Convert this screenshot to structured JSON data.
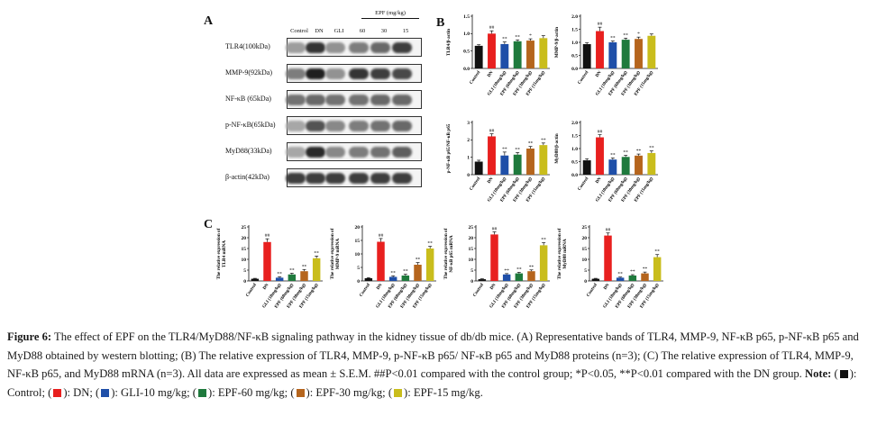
{
  "colors": {
    "Control": "#111111",
    "DN": "#e8201f",
    "GLI": "#1f4fa8",
    "EPF60": "#1f7a3d",
    "EPF30": "#b5651d",
    "EPF15": "#c9bd1c"
  },
  "panel_A": {
    "letter": "A",
    "lanes": [
      "Control",
      "DN",
      "GLI",
      "60",
      "30",
      "15"
    ],
    "epf_header": "EPF (mg/kg)",
    "rows": [
      {
        "label": "TLR4(100kDa)",
        "intensity": [
          0.35,
          0.85,
          0.4,
          0.5,
          0.6,
          0.8
        ]
      },
      {
        "label": "MMP-9(92kDa)",
        "intensity": [
          0.5,
          0.95,
          0.4,
          0.85,
          0.8,
          0.75
        ]
      },
      {
        "label": "NF-κB (65kDa)",
        "intensity": [
          0.55,
          0.6,
          0.55,
          0.55,
          0.6,
          0.6
        ]
      },
      {
        "label": "p-NF-κB(65kDa)",
        "intensity": [
          0.3,
          0.7,
          0.45,
          0.5,
          0.55,
          0.6
        ]
      },
      {
        "label": "MyD88(33kDa)",
        "intensity": [
          0.3,
          0.9,
          0.45,
          0.5,
          0.55,
          0.65
        ]
      },
      {
        "label": "β-actin(42kDa)",
        "intensity": [
          0.8,
          0.8,
          0.8,
          0.8,
          0.8,
          0.8
        ]
      }
    ]
  },
  "panel_B_letter": "B",
  "panel_C_letter": "C",
  "chart_data": [
    {
      "type": "bar",
      "panel": "B",
      "ylabel": "TLR4/β-actin",
      "ylim": [
        0,
        1.5
      ],
      "yticks": [
        0.0,
        0.5,
        1.0,
        1.5
      ],
      "categories": [
        "Control",
        "DN",
        "GLI (10mg/kg)",
        "EPF (60mg/kg)",
        "EPF (30mg/kg)",
        "EPF (15mg/kg)"
      ],
      "values": [
        0.65,
        1.0,
        0.7,
        0.78,
        0.8,
        0.87
      ],
      "errors": [
        0.03,
        0.08,
        0.06,
        0.04,
        0.05,
        0.07
      ],
      "annotations": [
        "",
        "##",
        "**",
        "**",
        "*",
        ""
      ]
    },
    {
      "type": "bar",
      "panel": "B",
      "ylabel": "MMP-9/β-actin",
      "ylim": [
        0,
        2.0
      ],
      "yticks": [
        0.0,
        0.5,
        1.0,
        1.5,
        2.0
      ],
      "categories": [
        "Control",
        "DN",
        "GLI (10mg/kg)",
        "EPF (60mg/kg)",
        "EPF (30mg/kg)",
        "EPF (15mg/kg)"
      ],
      "values": [
        0.93,
        1.43,
        1.0,
        1.1,
        1.13,
        1.25
      ],
      "errors": [
        0.05,
        0.15,
        0.05,
        0.06,
        0.07,
        0.07
      ],
      "annotations": [
        "",
        "##",
        "**",
        "**",
        "*",
        ""
      ]
    },
    {
      "type": "bar",
      "panel": "B",
      "ylabel": "p-NF-κB p65/NF-κB p65",
      "ylim": [
        0,
        3
      ],
      "yticks": [
        0,
        1,
        2,
        3
      ],
      "categories": [
        "Control",
        "DN",
        "GLI (10mg/kg)",
        "EPF (60mg/kg)",
        "EPF (30mg/kg)",
        "EPF (15mg/kg)"
      ],
      "values": [
        0.75,
        2.2,
        1.1,
        1.15,
        1.5,
        1.7
      ],
      "errors": [
        0.08,
        0.15,
        0.2,
        0.12,
        0.12,
        0.12
      ],
      "annotations": [
        "",
        "##",
        "**",
        "**",
        "**",
        "**"
      ]
    },
    {
      "type": "bar",
      "panel": "B",
      "ylabel": "MyD88/β-actin",
      "ylim": [
        0,
        2.0
      ],
      "yticks": [
        0.0,
        0.5,
        1.0,
        1.5,
        2.0
      ],
      "categories": [
        "Control",
        "DN",
        "GLI (10mg/kg)",
        "EPF (60mg/kg)",
        "EPF (30mg/kg)",
        "EPF (15mg/kg)"
      ],
      "values": [
        0.55,
        1.43,
        0.58,
        0.68,
        0.73,
        0.83
      ],
      "errors": [
        0.06,
        0.1,
        0.06,
        0.06,
        0.06,
        0.08
      ],
      "annotations": [
        "",
        "##",
        "**",
        "**",
        "**",
        "**"
      ]
    },
    {
      "type": "bar",
      "panel": "C",
      "ylabel": "The relative expression of TLR4 mRNA",
      "ylim": [
        0,
        25
      ],
      "yticks": [
        0,
        5,
        10,
        15,
        20,
        25
      ],
      "categories": [
        "Control",
        "DN",
        "GLI (10mg/kg)",
        "EPF (60mg/kg)",
        "EPF (30mg/kg)",
        "EPF (15mg/kg)"
      ],
      "values": [
        1.0,
        18.0,
        1.5,
        3.0,
        4.5,
        10.5
      ],
      "errors": [
        0.2,
        1.5,
        0.4,
        0.6,
        0.8,
        1.0
      ],
      "annotations": [
        "",
        "##",
        "**",
        "**",
        "**",
        "**"
      ]
    },
    {
      "type": "bar",
      "panel": "C",
      "ylabel": "The relative expression of MMP-9 mRNA",
      "ylim": [
        0,
        20
      ],
      "yticks": [
        0,
        5,
        10,
        15,
        20
      ],
      "categories": [
        "Control",
        "DN",
        "GLI (10mg/kg)",
        "EPF (60mg/kg)",
        "EPF (30mg/kg)",
        "EPF (15mg/kg)"
      ],
      "values": [
        1.0,
        14.5,
        1.5,
        2.0,
        6.0,
        12.0
      ],
      "errors": [
        0.2,
        1.2,
        0.4,
        0.5,
        0.8,
        0.8
      ],
      "annotations": [
        "",
        "##",
        "**",
        "**",
        "**",
        "**"
      ]
    },
    {
      "type": "bar",
      "panel": "C",
      "ylabel": "The relative expression of NF-κB p65 mRNA",
      "ylim": [
        0,
        25
      ],
      "yticks": [
        0,
        5,
        10,
        15,
        20,
        25
      ],
      "categories": [
        "Control",
        "DN",
        "GLI (10mg/kg)",
        "EPF (60mg/kg)",
        "EPF (30mg/kg)",
        "EPF (15mg/kg)"
      ],
      "values": [
        0.8,
        21.5,
        3.0,
        3.5,
        4.5,
        16.5
      ],
      "errors": [
        0.2,
        1.2,
        0.4,
        0.5,
        0.6,
        1.2
      ],
      "annotations": [
        "",
        "##",
        "**",
        "**",
        "**",
        "**"
      ]
    },
    {
      "type": "bar",
      "panel": "C",
      "ylabel": "The relative expression of MyD88 mRNA",
      "ylim": [
        0,
        25
      ],
      "yticks": [
        0,
        5,
        10,
        15,
        20,
        25
      ],
      "categories": [
        "Control",
        "DN",
        "GLI (10mg/kg)",
        "EPF (60mg/kg)",
        "EPF (30mg/kg)",
        "EPF (15mg/kg)"
      ],
      "values": [
        1.0,
        21.0,
        1.5,
        2.5,
        3.5,
        11.0
      ],
      "errors": [
        0.2,
        1.2,
        0.3,
        0.4,
        0.6,
        1.2
      ],
      "annotations": [
        "",
        "##",
        "**",
        "**",
        "**",
        "**"
      ]
    }
  ],
  "caption": {
    "label": "Figure 6:",
    "text": "The effect of EPF on the TLR4/MyD88/NF-κB signaling pathway in the kidney tissue of db/db mice. (A) Representative bands of TLR4, MMP-9, NF-κB p65, p-NF-κB p65 and MyD88 obtained by western blotting; (B) The relative expression of TLR4, MMP-9, p-NF-κB p65/ NF-κB p65 and MyD88 proteins (n=3); (C) The relative expression of TLR4, MMP-9, NF-κB p65, and MyD88 mRNA (n=3). All data are expressed as mean ± S.E.M. ##P<0.01 compared with the control group; *P<0.05, **P<0.01 compared with the DN group.",
    "note_label": "Note:",
    "legend": [
      {
        "key": "Control",
        "text": "): Control;"
      },
      {
        "key": "DN",
        "text": "): DN;"
      },
      {
        "key": "GLI",
        "text": "): GLI-10 mg/kg;"
      },
      {
        "key": "EPF60",
        "text": "): EPF-60 mg/kg;"
      },
      {
        "key": "EPF30",
        "text": "): EPF-30 mg/kg;"
      },
      {
        "key": "EPF15",
        "text": "): EPF-15 mg/kg."
      }
    ]
  }
}
